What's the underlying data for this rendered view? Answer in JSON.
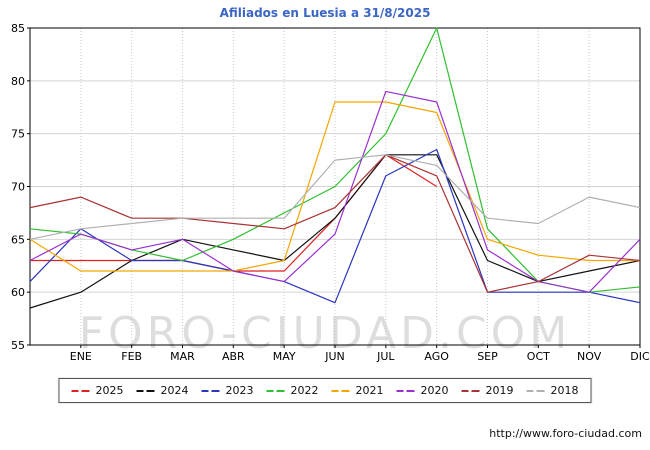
{
  "title": "Afiliados en Luesia a 31/8/2025",
  "watermark": "FORO-CIUDAD.COM",
  "footer": {
    "url": "http://www.foro-ciudad.com"
  },
  "colors": {
    "title": "#3b66c4",
    "grid": "#d4d4d4",
    "grid_vertical": "#c8c8c8",
    "axis": "#000000"
  },
  "chart_data": {
    "type": "line",
    "title": "Afiliados en Luesia a 31/8/2025",
    "xlabel": "",
    "ylabel": "",
    "ylim": [
      55,
      85
    ],
    "ytick_step": 5,
    "grid": true,
    "legend_position": "bottom",
    "categories": [
      "",
      "ENE",
      "FEB",
      "MAR",
      "ABR",
      "MAY",
      "JUN",
      "JUL",
      "AGO",
      "SEP",
      "OCT",
      "NOV",
      "DIC"
    ],
    "series": [
      {
        "name": "2025",
        "color": "#e02020",
        "values": [
          63,
          63,
          63,
          63,
          62,
          62,
          67,
          73,
          70,
          null,
          null,
          null,
          null
        ]
      },
      {
        "name": "2024",
        "color": "#111111",
        "values": [
          58.5,
          60,
          63,
          65,
          64,
          63,
          67,
          73,
          73,
          63,
          61,
          62,
          63
        ]
      },
      {
        "name": "2023",
        "color": "#2a35c0",
        "values": [
          61,
          66,
          63,
          63,
          62,
          61,
          59,
          71,
          73.5,
          60,
          60,
          60,
          59
        ]
      },
      {
        "name": "2022",
        "color": "#2fbf2f",
        "values": [
          66,
          65.5,
          64,
          63,
          65,
          67.5,
          70,
          75,
          85,
          66,
          61,
          60,
          60.5
        ]
      },
      {
        "name": "2021",
        "color": "#f5a600",
        "values": [
          65,
          62,
          62,
          62,
          62,
          63,
          78,
          78,
          77,
          65,
          63.5,
          63,
          63
        ]
      },
      {
        "name": "2020",
        "color": "#9b30d0",
        "values": [
          63,
          65.5,
          64,
          65,
          62,
          61,
          65.5,
          79,
          78,
          64,
          61,
          60,
          65
        ]
      },
      {
        "name": "2019",
        "color": "#aa3333",
        "values": [
          68,
          69,
          67,
          67,
          66.5,
          66,
          68,
          73,
          71,
          60,
          61,
          63.5,
          63
        ]
      },
      {
        "name": "2018",
        "color": "#b0b0b0",
        "values": [
          65,
          66,
          66.5,
          67,
          67,
          67,
          72.5,
          73,
          72,
          67,
          66.5,
          69,
          68
        ]
      }
    ]
  }
}
